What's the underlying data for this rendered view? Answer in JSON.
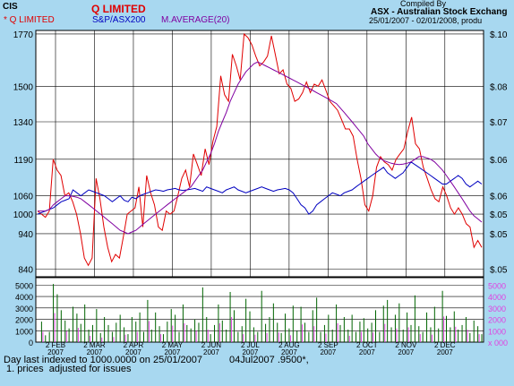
{
  "header": {
    "corner_label": "CIS",
    "security_name": "Q LIMITED",
    "legend": [
      {
        "label": "* Q LIMITED",
        "color": "#e00000"
      },
      {
        "label": "S&P/ASX200",
        "color": "#0000c0"
      },
      {
        "label": "M.AVERAGE(20)",
        "color": "#8000a0"
      }
    ],
    "compiled_by": "Compiled By",
    "exchange": "ASX - Australian Stock Exchang",
    "date_range": "25/01/2007 - 02/01/2008, produ"
  },
  "chart_data": {
    "type": "line",
    "left_axis_ticks": [
      "1770",
      "1500",
      "1340",
      "1190",
      "1060",
      "1000",
      "940",
      "840"
    ],
    "right_axis_ticks": [
      "$.10",
      "$.08",
      "$.07",
      "$.06",
      "$.06",
      "$.05",
      "$.05",
      "$.05"
    ],
    "volume_left_ticks": [
      "5000",
      "4000",
      "3000",
      "2000",
      "1000",
      "0"
    ],
    "volume_right_ticks": [
      "5000",
      "4000",
      "3000",
      "2000",
      "1000",
      "x 000"
    ],
    "x_tick_labels": [
      "2 FEB 2007",
      "2 MAR 2007",
      "2 APR 2007",
      "2 MAY 2007",
      "2 JUN 2007",
      "2 JUL 2007",
      "2 AUG 2007",
      "2 SEP 2007",
      "2 OCT 2007",
      "2 NOV 2007",
      "2 DEC 2007"
    ],
    "grid": true,
    "series": [
      {
        "name": "Q LIMITED",
        "color": "#e00000",
        "values": [
          1010,
          1000,
          990,
          1010,
          1190,
          1150,
          1130,
          1060,
          1070,
          1040,
          1000,
          940,
          870,
          850,
          870,
          1120,
          1050,
          960,
          900,
          860,
          880,
          870,
          930,
          1000,
          1010,
          1020,
          1090,
          960,
          1130,
          1070,
          1030,
          960,
          950,
          1010,
          1000,
          1010,
          1060,
          1120,
          1150,
          1090,
          1210,
          1170,
          1130,
          1230,
          1170,
          1260,
          1320,
          1550,
          1460,
          1430,
          1660,
          1600,
          1530,
          1770,
          1750,
          1710,
          1650,
          1600,
          1620,
          1650,
          1760,
          1660,
          1560,
          1580,
          1510,
          1490,
          1430,
          1440,
          1470,
          1520,
          1470,
          1510,
          1500,
          1530,
          1480,
          1430,
          1410,
          1390,
          1350,
          1310,
          1310,
          1280,
          1190,
          1120,
          1030,
          1010,
          1060,
          1160,
          1200,
          1180,
          1170,
          1150,
          1190,
          1210,
          1230,
          1300,
          1360,
          1250,
          1230,
          1160,
          1120,
          1080,
          1050,
          1040,
          1090,
          1060,
          1020,
          1000,
          1020,
          1000,
          970,
          960,
          900,
          920,
          900
        ]
      },
      {
        "name": "S&P/ASX200",
        "color": "#0000c0",
        "values": [
          1000,
          1005,
          1010,
          1015,
          1020,
          1030,
          1040,
          1045,
          1050,
          1080,
          1070,
          1060,
          1070,
          1080,
          1075,
          1070,
          1065,
          1060,
          1050,
          1040,
          1050,
          1060,
          1045,
          1040,
          1055,
          1050,
          1060,
          1065,
          1070,
          1075,
          1080,
          1078,
          1075,
          1080,
          1082,
          1085,
          1080,
          1078,
          1080,
          1082,
          1085,
          1080,
          1075,
          1090,
          1085,
          1080,
          1075,
          1070,
          1080,
          1085,
          1090,
          1080,
          1075,
          1070,
          1075,
          1080,
          1085,
          1090,
          1085,
          1080,
          1075,
          1080,
          1082,
          1085,
          1080,
          1070,
          1050,
          1030,
          1020,
          1000,
          1010,
          1030,
          1040,
          1050,
          1060,
          1070,
          1065,
          1060,
          1070,
          1075,
          1080,
          1090,
          1100,
          1110,
          1120,
          1130,
          1140,
          1150,
          1160,
          1140,
          1130,
          1120,
          1130,
          1140,
          1160,
          1180,
          1170,
          1160,
          1150,
          1140,
          1130,
          1120,
          1110,
          1100,
          1100,
          1110,
          1120,
          1130,
          1120,
          1100,
          1090,
          1100,
          1110,
          1100
        ]
      },
      {
        "name": "M.AVERAGE(20)",
        "color": "#8000a0",
        "values": [
          1010,
          1010,
          1010,
          1015,
          1030,
          1040,
          1050,
          1060,
          1060,
          1058,
          1055,
          1050,
          1040,
          1030,
          1020,
          1010,
          1000,
          990,
          980,
          970,
          960,
          950,
          945,
          940,
          945,
          950,
          960,
          970,
          980,
          990,
          1000,
          1010,
          1020,
          1030,
          1040,
          1050,
          1060,
          1070,
          1080,
          1090,
          1110,
          1130,
          1150,
          1180,
          1210,
          1250,
          1300,
          1340,
          1380,
          1430,
          1470,
          1510,
          1540,
          1570,
          1590,
          1610,
          1620,
          1610,
          1600,
          1590,
          1580,
          1570,
          1560,
          1550,
          1540,
          1530,
          1520,
          1510,
          1500,
          1490,
          1480,
          1470,
          1460,
          1450,
          1440,
          1430,
          1420,
          1400,
          1380,
          1360,
          1340,
          1320,
          1300,
          1280,
          1250,
          1230,
          1210,
          1195,
          1185,
          1180,
          1175,
          1172,
          1170,
          1172,
          1175,
          1180,
          1190,
          1200,
          1200,
          1195,
          1190,
          1180,
          1165,
          1150,
          1130,
          1110,
          1090,
          1070,
          1050,
          1030,
          1010,
          995,
          985,
          975
        ]
      }
    ],
    "volume": [
      0,
      1800,
      600,
      900,
      5100,
      4200,
      2800,
      1900,
      1200,
      3100,
      2500,
      1600,
      3300,
      1100,
      1500,
      2900,
      800,
      2200,
      1500,
      900,
      1700,
      2400,
      1300,
      700,
      2200,
      1800,
      2600,
      900,
      3700,
      1100,
      2600,
      1400,
      700,
      1800,
      2900,
      2400,
      900,
      3300,
      1500,
      1200,
      2000,
      1700,
      4800,
      2200,
      700,
      1500,
      3300,
      1900,
      1100,
      4400,
      2800,
      900,
      1400,
      3800,
      2700,
      1300,
      900,
      4500,
      1600,
      2200,
      3400,
      1700,
      800,
      2500,
      1200,
      3200,
      1000,
      3100,
      1700,
      900,
      2800,
      3900,
      900,
      1500,
      2400,
      1100,
      3300,
      1500,
      2200,
      1100,
      2400,
      900,
      1800,
      2100,
      1200,
      1700,
      2800,
      900,
      3200,
      3700,
      1300,
      2400,
      3400,
      1100,
      2600,
      1500,
      4100,
      1400,
      900,
      2600,
      1300,
      3100,
      1200,
      4500,
      2300,
      1300,
      2700,
      1100,
      1500,
      2200,
      800,
      1900,
      1400,
      700
    ],
    "volume_max": 5500
  },
  "footer": {
    "line1": "Day last indexed to 1000.0000 on 25/01/2007",
    "line1b": "04Jul2007 .9500*,",
    "line2": " 1. prices  adjusted for issues"
  },
  "colors": {
    "background": "#a8d8f0",
    "panel": "#ffffff",
    "volume_bar": "#006400",
    "volume_pink": "#e040e0"
  }
}
